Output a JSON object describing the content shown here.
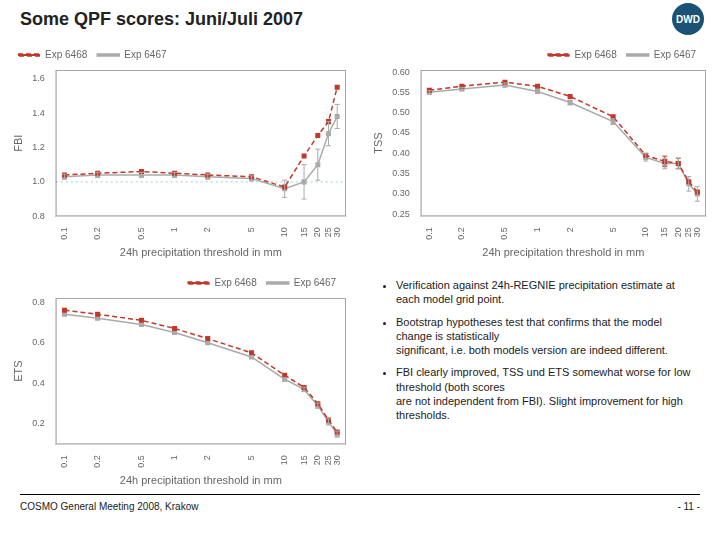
{
  "title": "Some QPF scores: Juni/Juli 2007",
  "logo": "DWD",
  "annotations": [
    "Verification against 24h-REGNIE precipitation estimate at each model grid point.",
    "Bootstrap hypotheses test that confirms that the model change is statistically\nsignificant, i.e. both models version are indeed different.",
    "FBI clearly improved, TSS und ETS somewhat worse for low threshold (both scores\nare not independent from FBI). Slight improvement for high thresholds."
  ],
  "footer": [
    "COSMO General Meeting 2008, Krakow",
    "- 11 -"
  ],
  "chart_data": [
    {
      "type": "line",
      "ylabel": "FBI",
      "xlabel": "24h precipitation threshold in mm",
      "log": "x",
      "grid": false,
      "legend": "upper left",
      "x": [
        0.1,
        0.2,
        0.5,
        1,
        2,
        5,
        10,
        15,
        20,
        25,
        30
      ],
      "xlim": [
        0.0832,
        36.07
      ],
      "xticks": [
        0.1,
        0.2,
        0.5,
        1,
        2,
        5,
        10,
        15,
        20,
        25,
        30
      ],
      "ylim": [
        0.8,
        1.65
      ],
      "yticks": [
        0.8,
        {
          "value": 1.0,
          "label": "1.0"
        },
        1.2,
        1.4,
        1.6
      ],
      "reference_line": 1.0,
      "series": [
        {
          "name": "Exp 6468",
          "color": "#c0392b",
          "line_style": "dashed",
          "marker": "square",
          "values": [
            1.04,
            1.05,
            1.06,
            1.05,
            1.04,
            1.03,
            0.97,
            1.15,
            1.27,
            1.35,
            1.55
          ]
        },
        {
          "name": "Exp 6467",
          "color": "#aaaaaa",
          "line_style": "solid",
          "marker": "square",
          "values": [
            1.03,
            1.04,
            1.04,
            1.04,
            1.03,
            1.02,
            0.96,
            1.0,
            1.1,
            1.28,
            1.38
          ],
          "errors": [
            0.015,
            0.015,
            0.015,
            0.015,
            0.015,
            0.015,
            0.05,
            0.1,
            0.09,
            0.07,
            0.07
          ]
        }
      ]
    },
    {
      "type": "line",
      "ylabel": "TSS",
      "xlabel": "24h precipitation threshold in mm",
      "log": "x",
      "grid": false,
      "legend": "upper right",
      "x": [
        0.1,
        0.2,
        0.5,
        1,
        2,
        5,
        10,
        15,
        20,
        25,
        30
      ],
      "xlim": [
        0.0832,
        36.07
      ],
      "xticks": [
        0.1,
        0.2,
        0.5,
        1,
        2,
        5,
        10,
        15,
        20,
        25,
        30
      ],
      "ylim": [
        0.245,
        0.605
      ],
      "yticks": [
        0.25,
        {
          "value": 0.3,
          "label": "0.30"
        },
        0.35,
        {
          "value": 0.4,
          "label": "0.40"
        },
        0.45,
        {
          "value": 0.5,
          "label": "0.50"
        },
        0.55,
        {
          "value": 0.6,
          "label": "0.60"
        }
      ],
      "series": [
        {
          "name": "Exp 6468",
          "color": "#c0392b",
          "line_style": "dashed",
          "marker": "square",
          "values": [
            0.555,
            0.565,
            0.575,
            0.565,
            0.54,
            0.49,
            0.395,
            0.38,
            0.375,
            0.33,
            0.305
          ],
          "errors": [
            null,
            null,
            null,
            null,
            null,
            null,
            null,
            0.013,
            0.013,
            null,
            null
          ]
        },
        {
          "name": "Exp 6467",
          "color": "#aaaaaa",
          "line_style": "solid",
          "marker": "square",
          "values": [
            0.55,
            0.558,
            0.568,
            0.552,
            0.525,
            0.478,
            0.39,
            0.375,
            0.375,
            0.325,
            0.3
          ],
          "errors": [
            0.004,
            0.004,
            0.005,
            0.005,
            0.006,
            0.007,
            0.009,
            0.013,
            0.013,
            0.018,
            0.018
          ]
        }
      ]
    },
    {
      "type": "line",
      "ylabel": "ETS",
      "xlabel": "24h precipitation threshold in mm",
      "log": "x",
      "grid": false,
      "legend": "upper right",
      "x": [
        0.1,
        0.2,
        0.5,
        1,
        2,
        5,
        10,
        15,
        20,
        25,
        30
      ],
      "xlim": [
        0.0832,
        36.07
      ],
      "xticks": [
        0.1,
        0.2,
        0.5,
        1,
        2,
        5,
        10,
        15,
        20,
        25,
        30
      ],
      "ylim": [
        0.1,
        0.82
      ],
      "yticks": [
        0.2,
        0.4,
        0.6,
        0.8
      ],
      "series": [
        {
          "name": "Exp 6468",
          "color": "#c0392b",
          "line_style": "dashed",
          "marker": "square",
          "values": [
            0.76,
            0.74,
            0.71,
            0.67,
            0.62,
            0.55,
            0.44,
            0.38,
            0.3,
            0.22,
            0.16
          ]
        },
        {
          "name": "Exp 6467",
          "color": "#aaaaaa",
          "line_style": "solid",
          "marker": "square",
          "values": [
            0.74,
            0.72,
            0.69,
            0.65,
            0.6,
            0.53,
            0.42,
            0.37,
            0.29,
            0.21,
            0.15
          ],
          "errors": [
            0.004,
            0.004,
            0.005,
            0.005,
            0.006,
            0.007,
            0.009,
            0.011,
            0.013,
            0.015,
            0.015
          ]
        }
      ]
    }
  ]
}
